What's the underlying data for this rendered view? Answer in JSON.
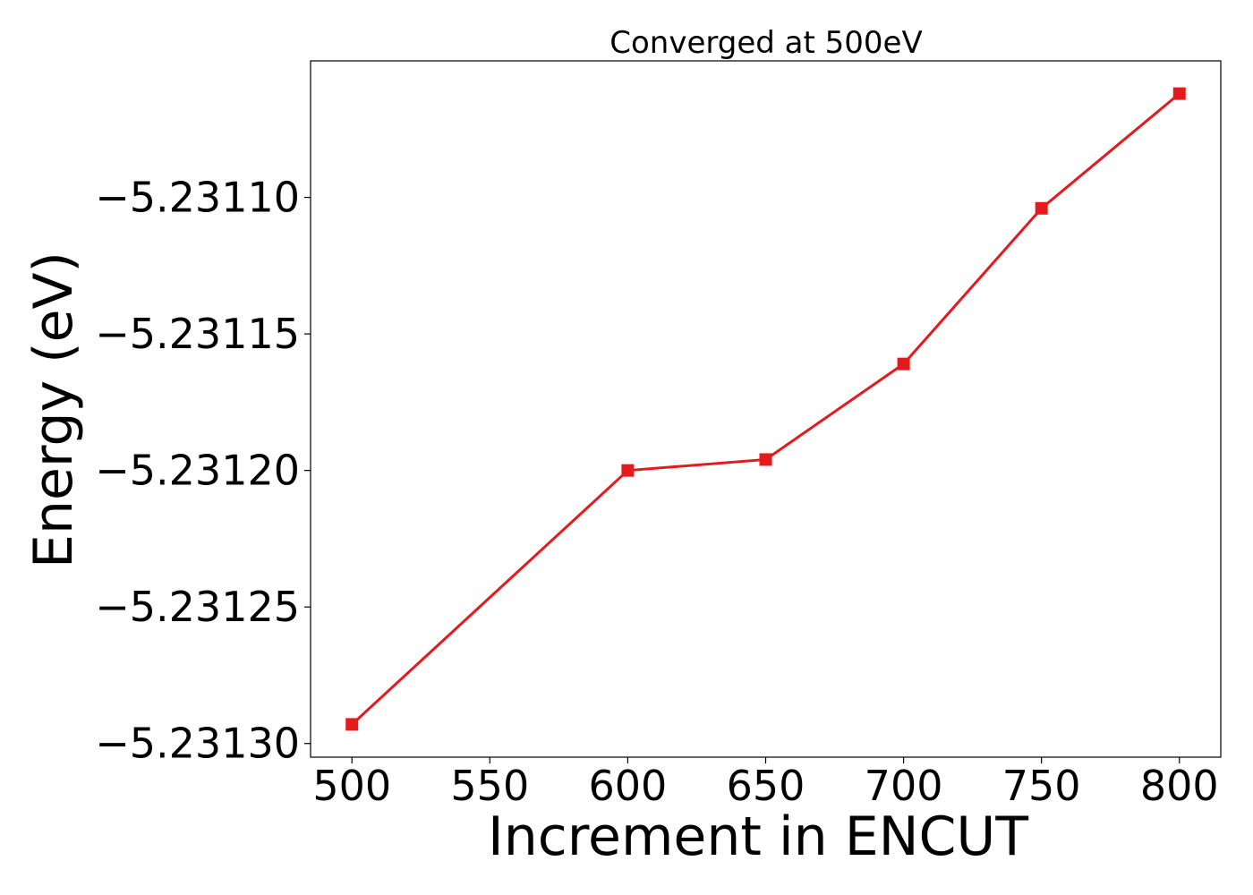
{
  "chart_data": {
    "type": "line",
    "title": "Converged at 500eV",
    "xlabel": "Increment in ENCUT",
    "ylabel": "Energy (eV)",
    "x": [
      500,
      600,
      650,
      700,
      750,
      800
    ],
    "series": [
      {
        "values": [
          -5.231293,
          -5.2312,
          -5.231196,
          -5.231161,
          -5.231104,
          -5.231062
        ],
        "color": "#e41a1c",
        "marker": "square"
      }
    ],
    "xlim": [
      485,
      815
    ],
    "ylim": [
      -5.231305,
      -5.23105
    ],
    "xticks": [
      500,
      550,
      600,
      650,
      700,
      750,
      800
    ],
    "xtick_labels": [
      "500",
      "550",
      "600",
      "650",
      "700",
      "750",
      "800"
    ],
    "yticks": [
      -5.2313,
      -5.23125,
      -5.2312,
      -5.23115,
      -5.2311
    ],
    "ytick_labels": [
      "−5.23130",
      "−5.23125",
      "−5.23120",
      "−5.23115",
      "−5.23110"
    ],
    "grid": false,
    "legend": "none"
  }
}
